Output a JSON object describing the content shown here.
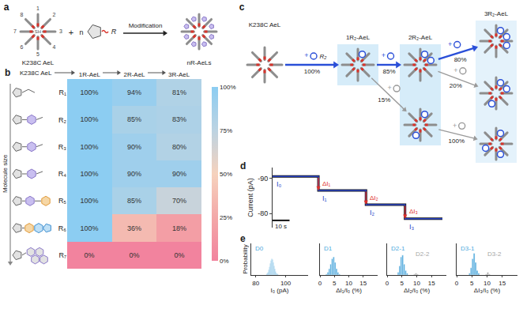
{
  "panels": {
    "a": {
      "label": "a",
      "protein": "K238C AeL",
      "subunits": [
        "1",
        "2",
        "3",
        "4",
        "5",
        "6",
        "7",
        "8"
      ],
      "thiol": "SH",
      "plus": "+",
      "n": "n",
      "reagent": "R",
      "arrow_label": "Modification",
      "product": "nR-AeLs"
    },
    "c": {
      "label": "c",
      "reagent": "R₂",
      "plus": "+",
      "states": [
        {
          "label": "K238C AeL",
          "rings": [
            []
          ]
        },
        {
          "label": "1R₂-AeL",
          "rings": [
            [
              1
            ]
          ]
        },
        {
          "label": "2R₂-AeL",
          "rings": [
            [
              1,
              2
            ],
            [
              1,
              5
            ]
          ]
        },
        {
          "label": "3R₂-AeL",
          "rings": [
            [
              1,
              2,
              3
            ],
            [
              1,
              2,
              5
            ],
            [
              1,
              4,
              6
            ]
          ]
        }
      ],
      "transitions": [
        {
          "from": [
            0,
            0
          ],
          "to": [
            1,
            0
          ],
          "label": "100%",
          "color": "#2a4fd8",
          "reagent": true
        },
        {
          "from": [
            1,
            0
          ],
          "to": [
            2,
            0
          ],
          "label": "85%",
          "color": "#2a4fd8"
        },
        {
          "from": [
            1,
            0
          ],
          "to": [
            2,
            1
          ],
          "label": "15%",
          "color": "#9a9a9a"
        },
        {
          "from": [
            2,
            0
          ],
          "to": [
            3,
            0
          ],
          "label": "80%",
          "color": "#2a4fd8"
        },
        {
          "from": [
            2,
            0
          ],
          "to": [
            3,
            1
          ],
          "label": "20%",
          "color": "#9a9a9a"
        },
        {
          "from": [
            2,
            1
          ],
          "to": [
            3,
            2
          ],
          "label": "100%",
          "color": "#9a9a9a"
        }
      ]
    }
  },
  "chart_data": [
    {
      "panel": "b",
      "type": "heatmap",
      "header": "K238C AeL",
      "x": [
        "1R-AeL",
        "2R-AeL",
        "3R-AeL"
      ],
      "y": [
        "R₁",
        "R₂",
        "R₃",
        "R₄",
        "R₅",
        "R₆",
        "R₇"
      ],
      "y_label": "Molecule size",
      "values": [
        [
          100,
          94,
          81
        ],
        [
          100,
          85,
          83
        ],
        [
          100,
          90,
          80
        ],
        [
          100,
          90,
          90
        ],
        [
          100,
          85,
          70
        ],
        [
          100,
          36,
          18
        ],
        [
          0,
          0,
          0
        ]
      ],
      "value_labels": [
        [
          "100%",
          "94%",
          "81%"
        ],
        [
          "100%",
          "85%",
          "83%"
        ],
        [
          "100%",
          "90%",
          "80%"
        ],
        [
          "100%",
          "90%",
          "90%"
        ],
        [
          "100%",
          "85%",
          "70%"
        ],
        [
          "100%",
          "36%",
          "18%"
        ],
        [
          "0%",
          "0%",
          "0%"
        ]
      ],
      "colorbar": {
        "range": [
          0,
          100
        ],
        "ticks": [
          {
            "value": 0,
            "label": "0%"
          },
          {
            "value": 25,
            "label": "25%"
          },
          {
            "value": 50,
            "label": "50%"
          },
          {
            "value": 75,
            "label": "75%"
          },
          {
            "value": 100,
            "label": "100%"
          }
        ]
      }
    },
    {
      "panel": "d",
      "type": "line",
      "y_label": "Current (pA)",
      "grid": false,
      "tick_labels": "y",
      "xlim": [
        0,
        100
      ],
      "ylim": [
        -76,
        -93
      ],
      "yticks": [
        {
          "value": -90,
          "label": "-90"
        },
        {
          "value": -80,
          "label": "-80"
        }
      ],
      "x": [
        0,
        27,
        27,
        55,
        55,
        78,
        78,
        100
      ],
      "series": [
        {
          "color": "#2b45c8",
          "values": [
            -90.5,
            -90.5,
            -86.5,
            -86.5,
            -82.5,
            -82.5,
            -78.5,
            -78.5
          ]
        }
      ],
      "level_labels": [
        "I₀",
        "I₁",
        "I₂",
        "I₃"
      ],
      "step_labels": [
        "ΔI₁",
        "ΔI₂",
        "ΔI₃"
      ],
      "scale_bar": {
        "value": 10,
        "label": "10 s"
      }
    },
    {
      "panel": "e",
      "type": "histogram",
      "x_label": "I₀ (pA)",
      "y_label": "Probability",
      "tick_labels": "x",
      "xlim": [
        77,
        115
      ],
      "xticks": [
        80,
        100
      ],
      "ylim": [
        0,
        0.35
      ],
      "series": [
        {
          "name": "D0",
          "color": "#4fa9dd",
          "bins": [
            87,
            87.5,
            88,
            88.5,
            89,
            89.5,
            90,
            90.5,
            91,
            91.5,
            92,
            92.5,
            93,
            93.5,
            94,
            94.5,
            95
          ],
          "values": [
            0.01,
            0.02,
            0.03,
            0.06,
            0.09,
            0.13,
            0.16,
            0.18,
            0.17,
            0.14,
            0.1,
            0.07,
            0.04,
            0.02,
            0.01,
            0.01
          ]
        }
      ]
    },
    {
      "type": "histogram",
      "x_label": "ΔI₁/I₀ (%)",
      "tick_labels": "x",
      "xlim": [
        0,
        20
      ],
      "xticks": [
        0,
        5,
        10,
        15
      ],
      "ylim": [
        0,
        0.35
      ],
      "series": [
        {
          "name": "D1",
          "color": "#4fa9dd",
          "bins": [
            2,
            2.5,
            3,
            3.5,
            4,
            4.5,
            5,
            5.5,
            6,
            6.5,
            7
          ],
          "values": [
            0.01,
            0.03,
            0.07,
            0.12,
            0.18,
            0.2,
            0.14,
            0.07,
            0.03,
            0.01
          ]
        }
      ]
    },
    {
      "type": "histogram",
      "x_label": "ΔI₂/I₀ (%)",
      "tick_labels": "x",
      "xlim": [
        0,
        20
      ],
      "xticks": [
        0,
        5,
        10,
        15
      ],
      "ylim": [
        0,
        0.35
      ],
      "series": [
        {
          "name": "D2-1",
          "color": "#4fa9dd",
          "bins": [
            3.5,
            4,
            4.5,
            5,
            5.5,
            6,
            6.5,
            7
          ],
          "values": [
            0.03,
            0.1,
            0.2,
            0.22,
            0.12,
            0.05,
            0.02
          ]
        },
        {
          "name": "D2-2",
          "color": "#a6a6a6",
          "bins": [
            9,
            9.5,
            10,
            10.5
          ],
          "values": [
            0.01,
            0.02,
            0.01
          ]
        }
      ]
    },
    {
      "type": "histogram",
      "x_label": "ΔI₃/I₀ (%)",
      "tick_labels": "x",
      "xlim": [
        0,
        20
      ],
      "xticks": [
        0,
        5,
        10,
        15
      ],
      "ylim": [
        0,
        0.35
      ],
      "series": [
        {
          "name": "D3-1",
          "color": "#4fa9dd",
          "bins": [
            4,
            4.5,
            5,
            5.5,
            6,
            6.5,
            7,
            7.5
          ],
          "values": [
            0.02,
            0.08,
            0.18,
            0.24,
            0.14,
            0.05,
            0.02
          ]
        },
        {
          "name": "D3-2",
          "color": "#a6a6a6",
          "bins": [
            9.5,
            10,
            10.5,
            11
          ],
          "values": [
            0.01,
            0.03,
            0.01
          ]
        }
      ]
    }
  ]
}
